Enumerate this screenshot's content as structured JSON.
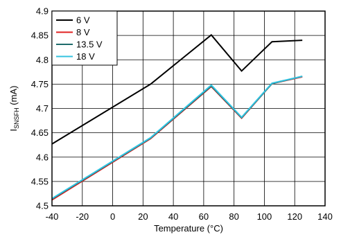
{
  "chart_data": {
    "type": "line",
    "xlabel": "Temperature (°C)",
    "ylabel": {
      "main": "I",
      "sub": "SNSFH",
      "unit": " (mA)"
    },
    "xlim": [
      -40,
      140
    ],
    "ylim": [
      4.5,
      4.9
    ],
    "xticks": [
      -40,
      -20,
      0,
      20,
      40,
      60,
      80,
      100,
      120,
      140
    ],
    "yticks": [
      4.5,
      4.55,
      4.6,
      4.65,
      4.7,
      4.75,
      4.8,
      4.85,
      4.9
    ],
    "xtick_labels": [
      "-40",
      "-20",
      "0",
      "20",
      "40",
      "60",
      "80",
      "100",
      "120",
      "140"
    ],
    "ytick_labels": [
      "4.5",
      "4.55",
      "4.6",
      "4.65",
      "4.7",
      "4.75",
      "4.8",
      "4.85",
      "4.9"
    ],
    "grid": true,
    "legend_position": "top-left",
    "series": [
      {
        "name": "6 V",
        "color": "#000000",
        "x": [
          -40,
          25,
          65,
          85,
          105,
          125
        ],
        "y": [
          4.627,
          4.75,
          4.851,
          4.777,
          4.837,
          4.84
        ]
      },
      {
        "name": "8 V",
        "color": "#e02020",
        "x": [
          -40,
          25,
          65,
          85,
          105,
          125
        ],
        "y": [
          4.512,
          4.638,
          4.745,
          4.68,
          4.751,
          4.765
        ]
      },
      {
        "name": "13.5 V",
        "color": "#1f6b6b",
        "x": [
          -40,
          25,
          65,
          85,
          105,
          125
        ],
        "y": [
          4.514,
          4.639,
          4.746,
          4.681,
          4.751,
          4.766
        ]
      },
      {
        "name": "18 V",
        "color": "#33c3e0",
        "x": [
          -40,
          25,
          65,
          85,
          105,
          125
        ],
        "y": [
          4.515,
          4.64,
          4.748,
          4.682,
          4.752,
          4.766
        ]
      }
    ]
  }
}
